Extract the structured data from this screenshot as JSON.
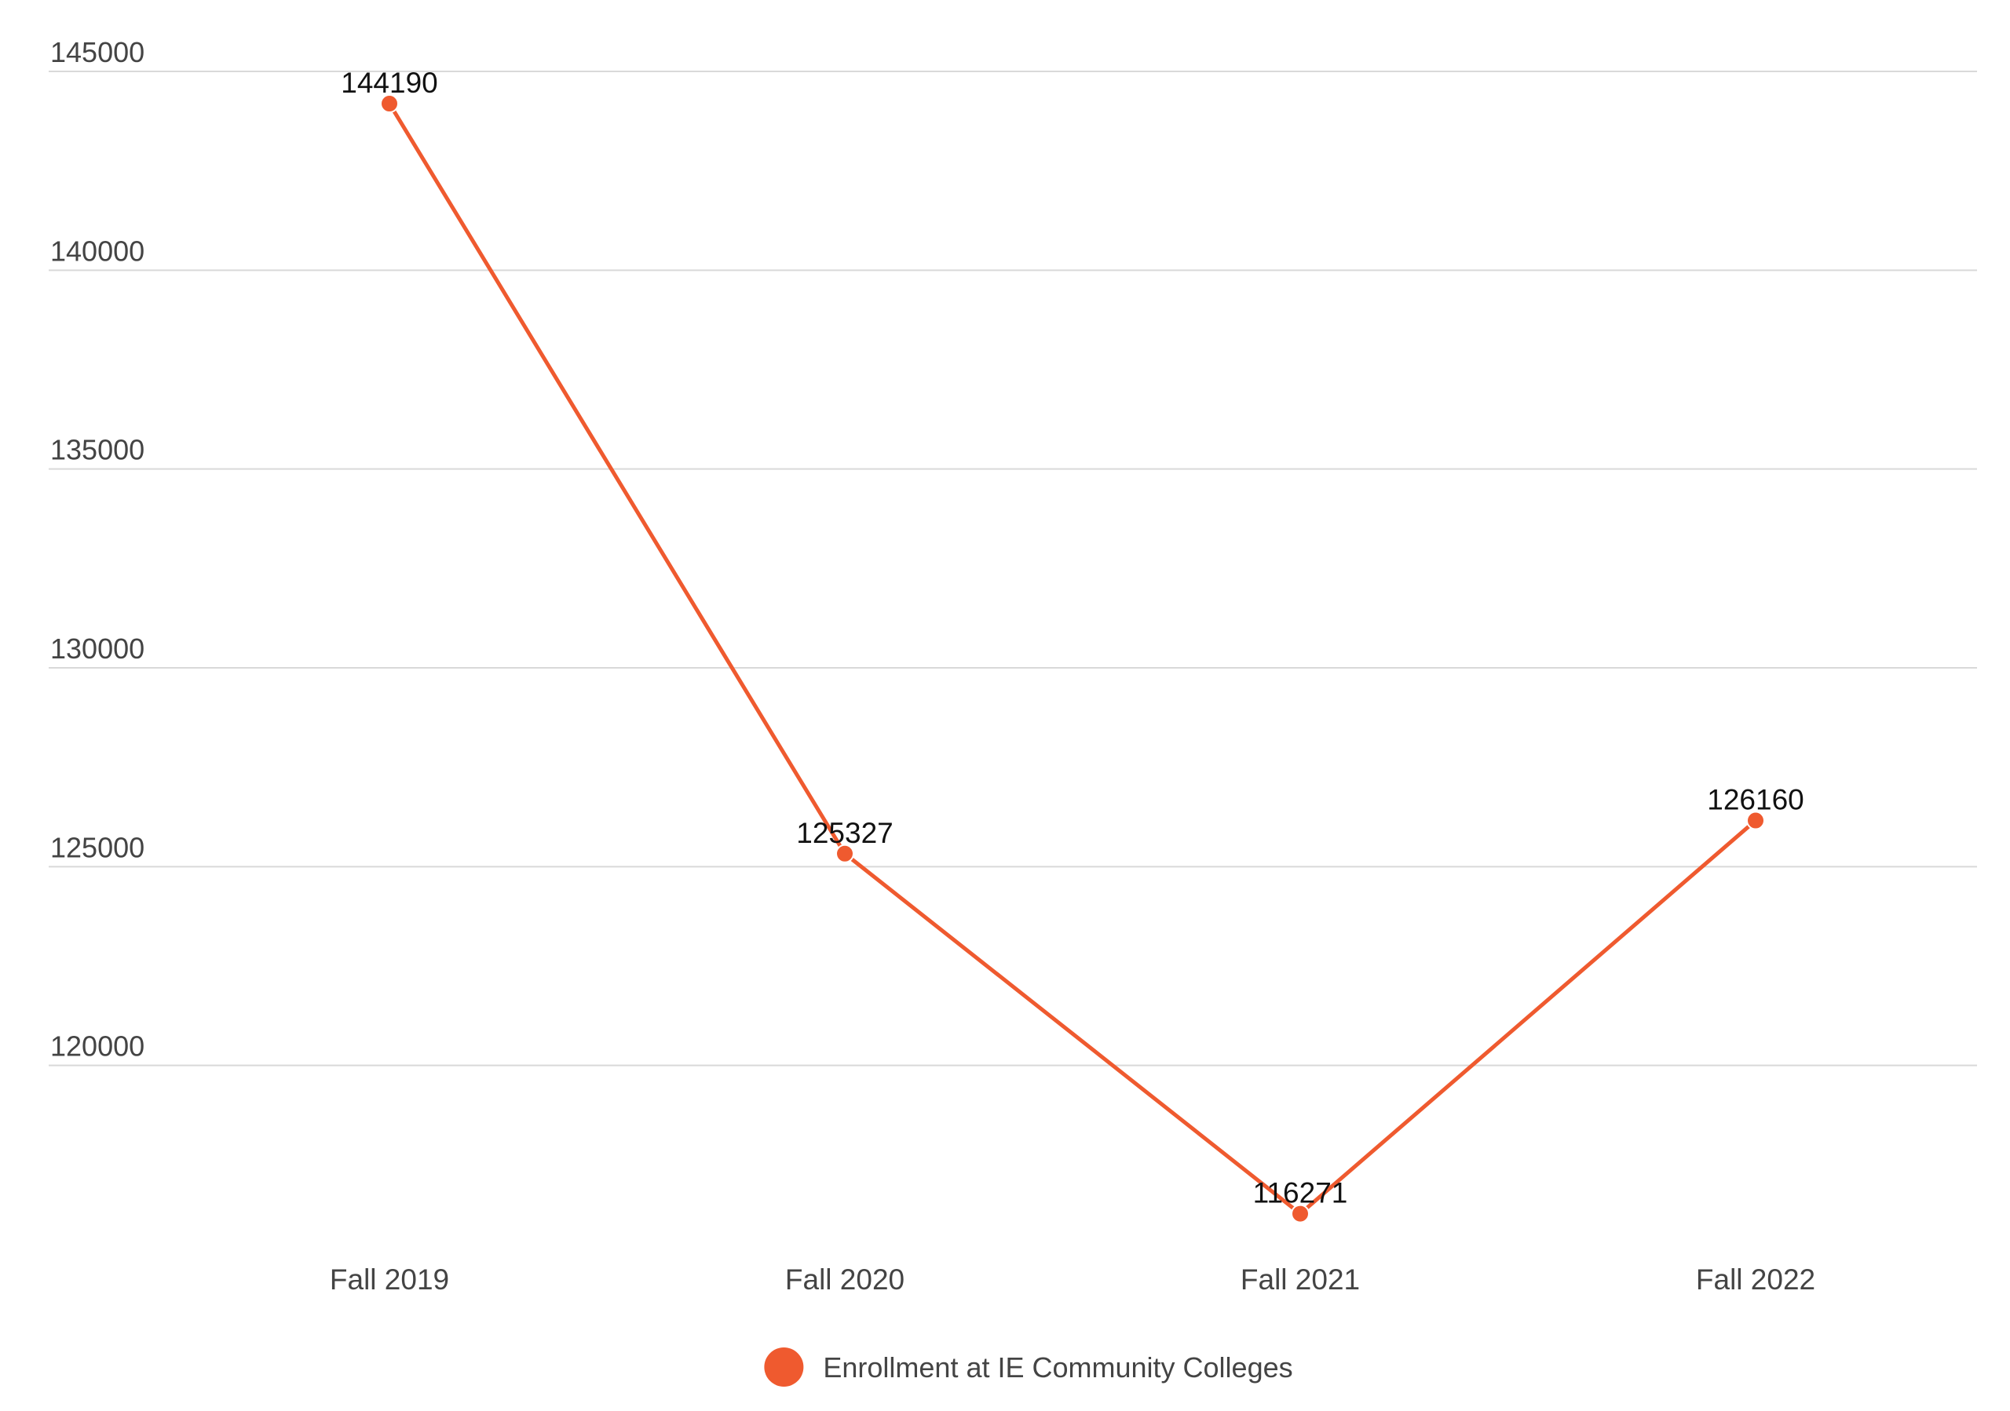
{
  "chart_data": {
    "type": "line",
    "categories": [
      "Fall 2019",
      "Fall 2020",
      "Fall 2021",
      "Fall 2022"
    ],
    "series": [
      {
        "name": "Enrollment at IE Community Colleges",
        "values": [
          144190,
          125327,
          116271,
          126160
        ],
        "color": "#ef5a2f"
      }
    ],
    "yticks": [
      120000,
      125000,
      130000,
      135000,
      140000,
      145000
    ],
    "ylim": [
      115000,
      145000
    ],
    "grid": true,
    "data_labels": true,
    "legend_position": "bottom-center"
  }
}
